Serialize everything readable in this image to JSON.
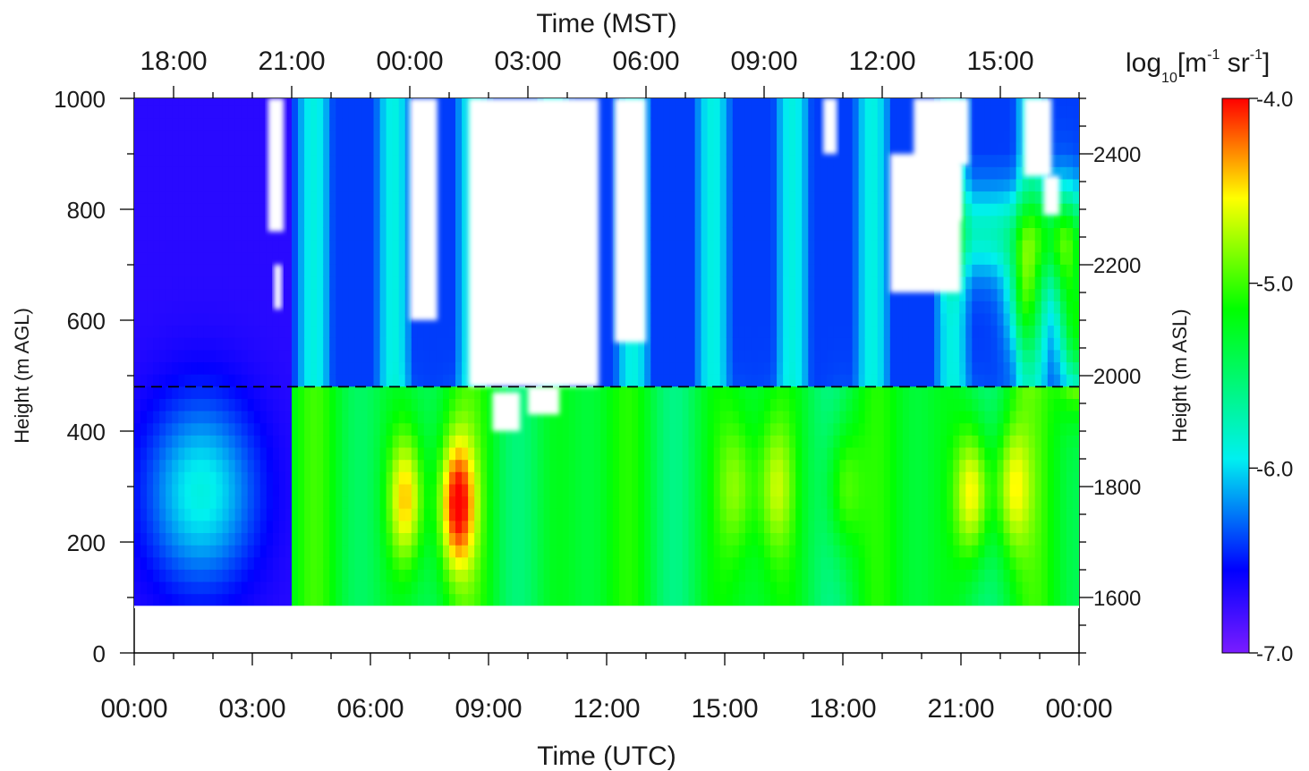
{
  "chart_data": {
    "type": "heatmap",
    "title": "",
    "x_top_label": "Time (MST)",
    "x_top_ticks": [
      "18:00",
      "21:00",
      "00:00",
      "03:00",
      "06:00",
      "09:00",
      "12:00",
      "15:00"
    ],
    "x_bottom_label": "Time (UTC)",
    "x_bottom_ticks": [
      "00:00",
      "03:00",
      "06:00",
      "09:00",
      "12:00",
      "15:00",
      "18:00",
      "21:00",
      "00:00"
    ],
    "xlim_hours_utc": [
      0,
      24
    ],
    "y_left_label": "Height (m AGL)",
    "y_left_ticks": [
      0,
      200,
      400,
      600,
      800,
      1000
    ],
    "y_left_lim": [
      0,
      1000
    ],
    "y_right_label": "Height (m ASL)",
    "y_right_ticks": [
      1600,
      1800,
      2000,
      2200,
      2400
    ],
    "y_right_lim": [
      1500,
      2500
    ],
    "data_height_range": [
      85,
      1000
    ],
    "reference_line_height_m_agl": 480,
    "colorbar": {
      "label_prefix": "log",
      "label_sub": "10",
      "label_main": "[m",
      "label_sup1": "-1",
      "label_mid": " sr",
      "label_sup2": "-1",
      "label_end": "]",
      "ticks": [
        "-4.0",
        "-5.0",
        "-6.0",
        "-7.0"
      ],
      "range": [
        -7.0,
        -4.0
      ],
      "colors": [
        "#7a1cff",
        "#0000ff",
        "#00f0f0",
        "#00ff00",
        "#ffff00",
        "#ff0000"
      ]
    },
    "grid": false,
    "legend": "none"
  }
}
